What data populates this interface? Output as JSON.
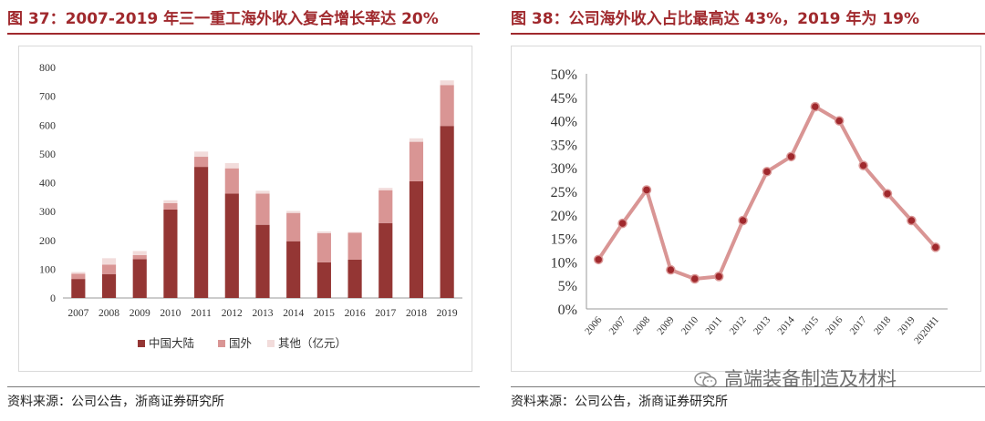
{
  "left": {
    "title": "图 37：2007-2019 年三一重工海外收入复合增长率达 20%",
    "source": "资料来源：公司公告，浙商证券研究所"
  },
  "right": {
    "title": "图 38：公司海外收入占比最高达 43%，2019 年为 19%",
    "source": "资料来源：公司公告，浙商证券研究所"
  },
  "watermark": {
    "text": "高端装备制造及材料",
    "icon": "wechat-icon"
  },
  "colors": {
    "title": "#a0292d",
    "domestic": "#943634",
    "overseas": "#d99594",
    "other": "#f2dcdb",
    "line": "#d99594",
    "marker": "#a0292d"
  },
  "chart_data": [
    {
      "type": "bar",
      "stacked": true,
      "categories": [
        "2007",
        "2008",
        "2009",
        "2010",
        "2011",
        "2012",
        "2013",
        "2014",
        "2015",
        "2016",
        "2017",
        "2018",
        "2019"
      ],
      "series": [
        {
          "name": "中国大陆",
          "values": [
            66,
            83,
            135,
            307,
            455,
            362,
            254,
            197,
            124,
            133,
            260,
            405,
            597
          ]
        },
        {
          "name": "国外",
          "values": [
            18,
            33,
            14,
            22,
            35,
            88,
            108,
            98,
            101,
            93,
            114,
            137,
            142
          ]
        },
        {
          "name": "其他（亿元）",
          "values": [
            6,
            22,
            14,
            10,
            18,
            18,
            10,
            7,
            6,
            3,
            8,
            12,
            16
          ]
        }
      ],
      "yticks": [
        "0",
        "100",
        "200",
        "300",
        "400",
        "500",
        "600",
        "700",
        "800"
      ],
      "ylim": [
        0,
        800
      ],
      "legend_position": "bottom",
      "grid": false
    },
    {
      "type": "line",
      "x": [
        "2006",
        "2007",
        "2008",
        "2009",
        "2010",
        "2011",
        "2012",
        "2013",
        "2014",
        "2015",
        "2016",
        "2017",
        "2018",
        "2019",
        "2020H1"
      ],
      "values": [
        10.5,
        18.2,
        25.3,
        8.3,
        6.4,
        6.9,
        18.8,
        29.2,
        32.4,
        43.0,
        40.0,
        30.5,
        24.5,
        18.8,
        13.1
      ],
      "yticks": [
        "0%",
        "5%",
        "10%",
        "15%",
        "20%",
        "25%",
        "30%",
        "35%",
        "40%",
        "45%",
        "50%"
      ],
      "ylim": [
        0,
        50
      ],
      "grid": false
    }
  ]
}
